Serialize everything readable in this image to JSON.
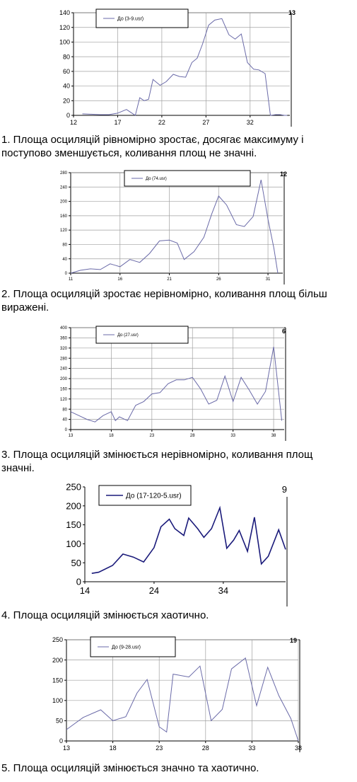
{
  "chart_data": [
    {
      "type": "line",
      "legend": "До (3-9.usr)",
      "corner_label": "13",
      "x_ticks": [
        "12",
        "17",
        "22",
        "27",
        "32"
      ],
      "y_ticks": [
        "0",
        "20",
        "40",
        "60",
        "80",
        "100",
        "120",
        "140"
      ],
      "xlim": [
        12,
        36.5
      ],
      "ylim": [
        0,
        140
      ],
      "x": [
        13,
        14,
        15,
        16,
        17,
        18,
        18.5,
        19,
        19.5,
        20,
        20.5,
        21,
        21.8,
        22.5,
        23.3,
        24,
        24.7,
        25.4,
        26,
        26.6,
        27.3,
        28,
        28.8,
        29.6,
        30.3,
        31,
        31.7,
        32.4,
        33,
        33.7,
        34.3,
        34.9,
        35.4,
        35.9,
        36.2
      ],
      "y": [
        2,
        1.5,
        1,
        1,
        3,
        8,
        4,
        0,
        24,
        20,
        22,
        49,
        41,
        46,
        56,
        53,
        52,
        72,
        78,
        97,
        123,
        130,
        132,
        110,
        104,
        111,
        72,
        63,
        62,
        57,
        0,
        1,
        1,
        0,
        0
      ],
      "color": "#6a6aa8",
      "grid": true,
      "legend_position": "top-left"
    },
    {
      "type": "line",
      "legend": "До (74.usr)",
      "corner_label": "12",
      "x_ticks": [
        "11",
        "16",
        "21",
        "26",
        "31"
      ],
      "y_ticks": [
        "0",
        "40",
        "80",
        "120",
        "160",
        "200",
        "240",
        "280"
      ],
      "xlim": [
        11,
        32.5
      ],
      "ylim": [
        0,
        280
      ],
      "x": [
        11,
        12,
        13,
        14,
        15,
        15.5,
        16,
        17,
        18,
        19,
        20,
        21,
        21.8,
        22.5,
        23.5,
        24.5,
        25.3,
        26,
        26.8,
        27.8,
        28.6,
        29.5,
        30.3,
        31,
        31.6,
        32
      ],
      "y": [
        0,
        8,
        12,
        10,
        26,
        22,
        18,
        38,
        30,
        55,
        90,
        92,
        84,
        38,
        60,
        100,
        165,
        215,
        190,
        135,
        130,
        158,
        260,
        150,
        70,
        0
      ],
      "color": "#6a6aa8",
      "grid": true,
      "legend_position": "top-left"
    },
    {
      "type": "line",
      "legend": "До (27.usr)",
      "corner_label": "6",
      "x_ticks": [
        "13",
        "18",
        "23",
        "28",
        "33",
        "38"
      ],
      "y_ticks": [
        "0",
        "40",
        "80",
        "120",
        "160",
        "200",
        "240",
        "280",
        "320",
        "360",
        "400"
      ],
      "xlim": [
        13,
        39.3
      ],
      "ylim": [
        0,
        400
      ],
      "x": [
        13,
        14,
        15,
        16,
        17,
        18,
        18.5,
        19,
        20,
        21,
        22,
        23,
        24,
        25,
        26,
        27,
        28,
        29,
        30,
        31,
        32,
        33,
        34,
        35,
        36,
        37,
        38,
        39
      ],
      "y": [
        70,
        55,
        40,
        30,
        55,
        70,
        35,
        50,
        35,
        95,
        110,
        140,
        145,
        180,
        195,
        195,
        205,
        160,
        100,
        115,
        210,
        110,
        205,
        155,
        100,
        150,
        325,
        35
      ],
      "color": "#6a6aa8",
      "grid": true,
      "legend_position": "top-left"
    },
    {
      "type": "line",
      "legend": "До (17-120-5.usr)",
      "corner_label": "9",
      "x_ticks": [
        "14",
        "24",
        "34"
      ],
      "y_ticks": [
        "0",
        "50",
        "100",
        "150",
        "200",
        "250"
      ],
      "xlim": [
        14,
        43
      ],
      "ylim": [
        0,
        250
      ],
      "x": [
        15,
        16,
        18,
        19.5,
        21,
        22.5,
        24,
        25,
        26.2,
        27,
        28.3,
        29,
        30.3,
        31.2,
        32.3,
        33.5,
        34.5,
        35.5,
        36.3,
        37.5,
        38.5,
        39.5,
        40.5,
        42,
        43
      ],
      "y": [
        22,
        25,
        43,
        73,
        65,
        52,
        90,
        145,
        165,
        140,
        122,
        168,
        140,
        117,
        140,
        195,
        88,
        110,
        135,
        80,
        170,
        47,
        67,
        137,
        85
      ],
      "color": "#1a1a7a",
      "grid": false,
      "legend_position": "top-left"
    },
    {
      "type": "line",
      "legend": "До (9-28.usr)",
      "corner_label": "19",
      "x_ticks": [
        "13",
        "18",
        "23",
        "28",
        "33",
        "38"
      ],
      "y_ticks": [
        "0",
        "50",
        "100",
        "150",
        "200",
        "250"
      ],
      "xlim": [
        13,
        38
      ],
      "ylim": [
        0,
        250
      ],
      "x": [
        13,
        14.8,
        16.7,
        18,
        19.4,
        20.6,
        21.7,
        23,
        23.8,
        24.5,
        26.2,
        27.4,
        28.6,
        29.8,
        30.8,
        32.3,
        33.5,
        34.7,
        35.9,
        37.2,
        38
      ],
      "y": [
        28,
        58,
        77,
        50,
        60,
        118,
        152,
        35,
        22,
        165,
        158,
        185,
        50,
        78,
        178,
        205,
        87,
        182,
        112,
        55,
        0
      ],
      "color": "#6a6aa8",
      "grid": true,
      "legend_position": "top-left"
    }
  ],
  "captions": [
    "1. Площа осциляцій рівномірно зростає, досягає максимуму і поступово зменшується, коливання площ не значні.",
    "2. Площа осциляцій зростає нерівномірно, коливання площ більш виражені.",
    "3. Площа осциляцій змінюється нерівномірно, коливання площ значні.",
    "4. Площа осциляцій змінюється хаотично.",
    "5. Площа осциляцій змінюється значно та хаотично."
  ]
}
